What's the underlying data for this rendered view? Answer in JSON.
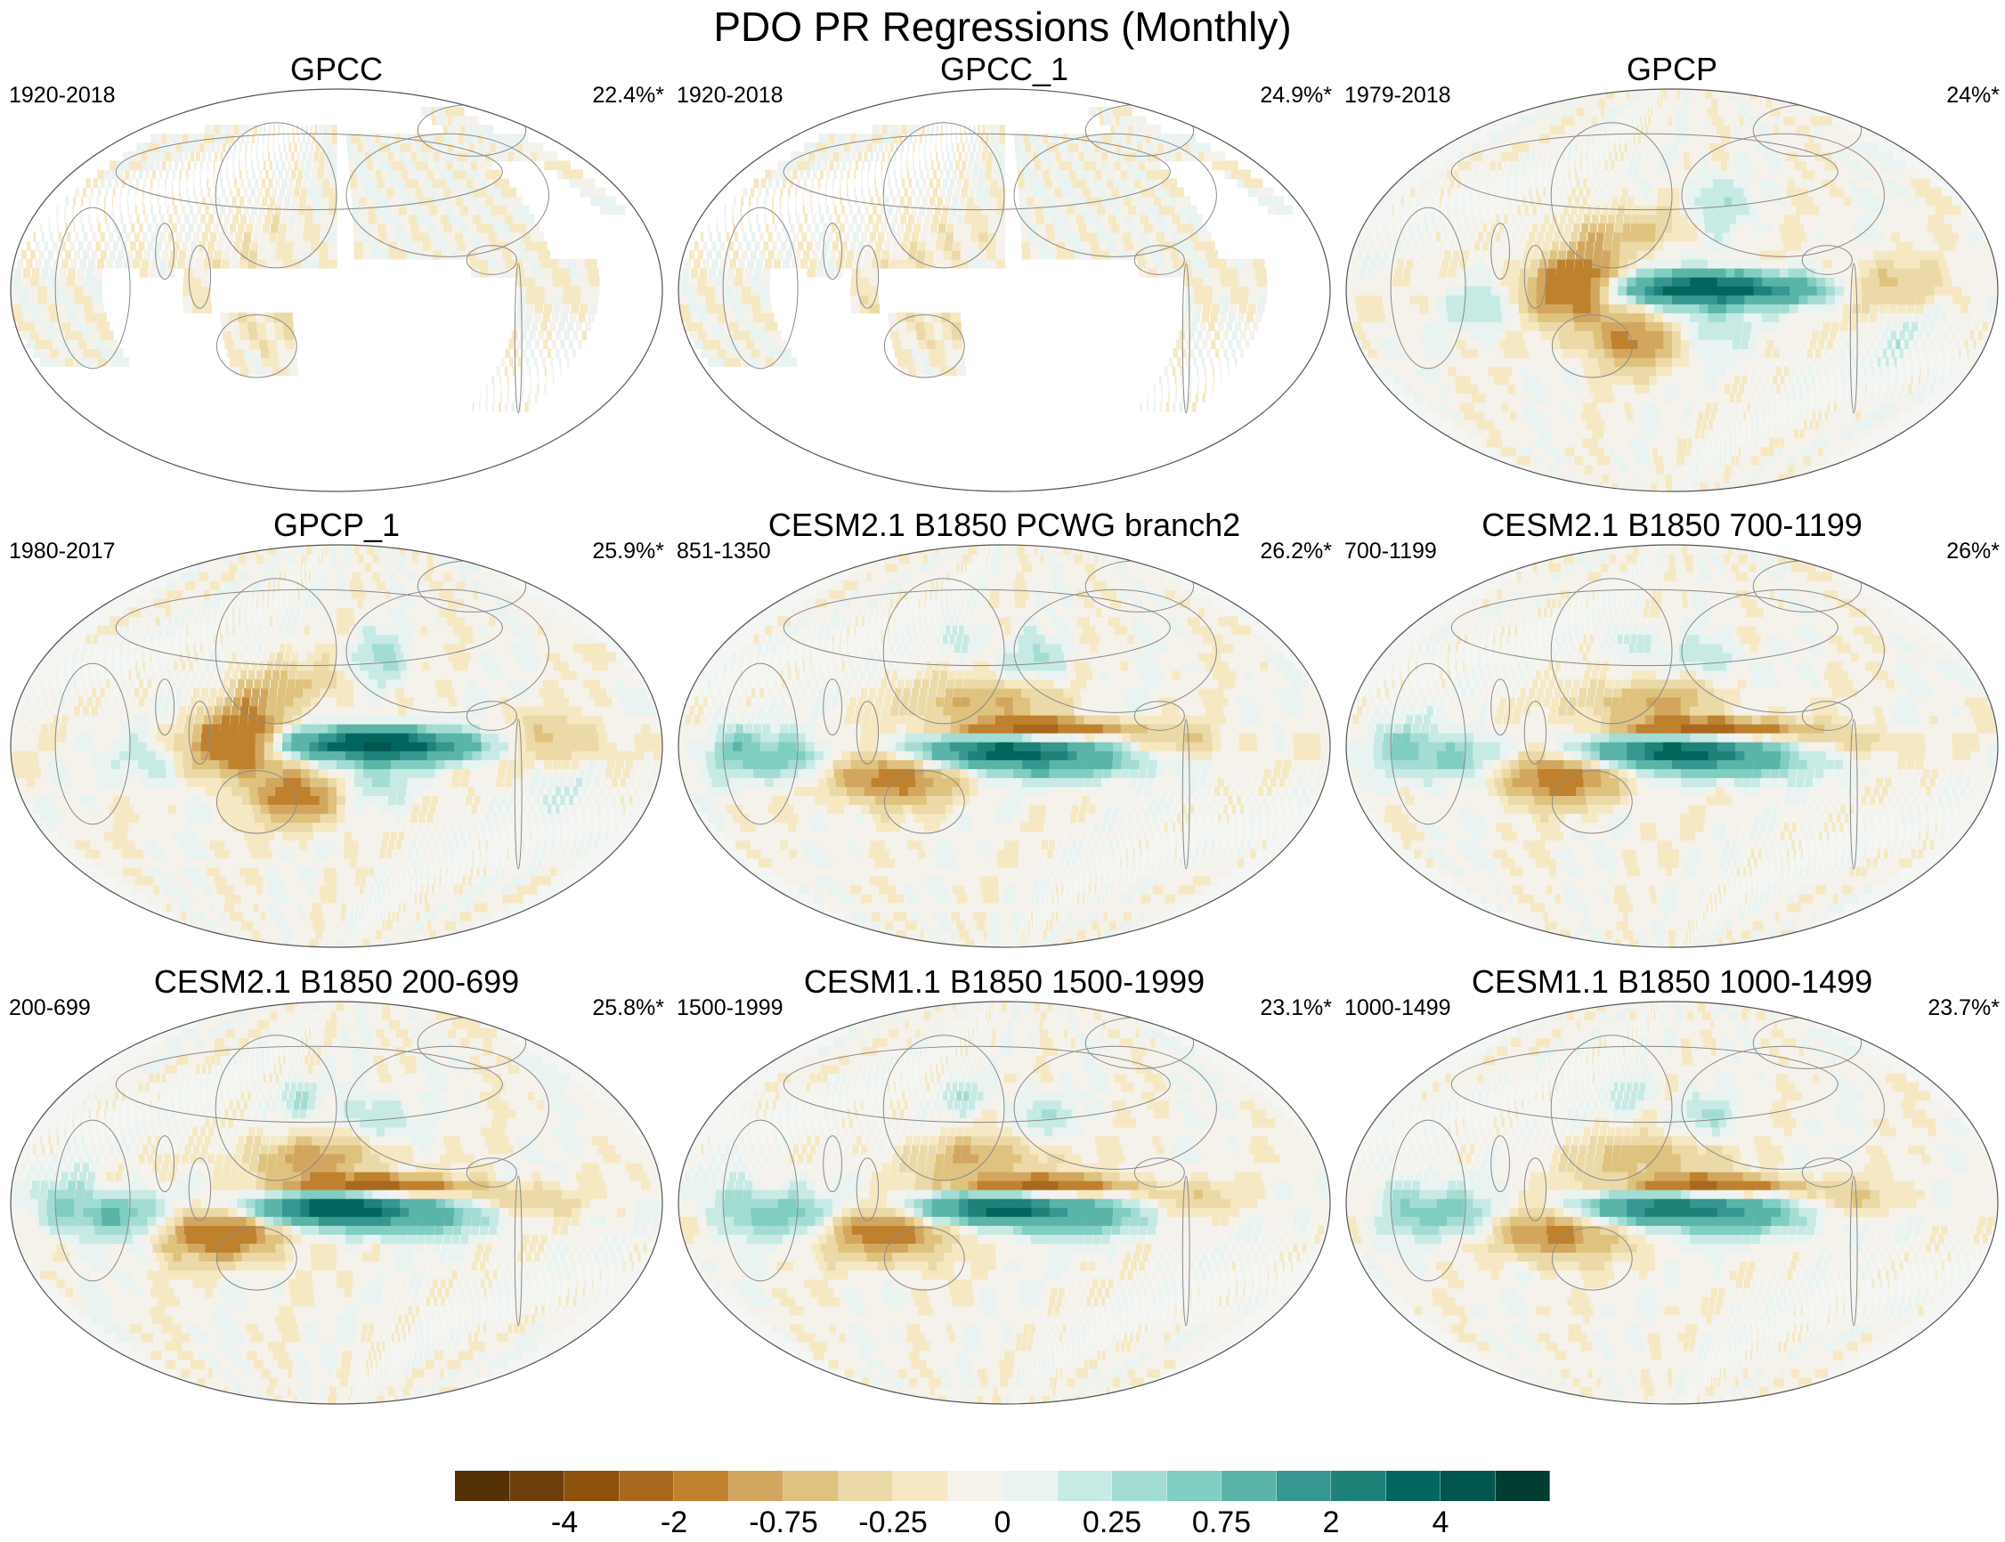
{
  "figure": {
    "title": "PDO PR Regressions (Monthly)"
  },
  "panels": [
    {
      "title": "GPCC",
      "period": "1920-2018",
      "percent": "22.4%*",
      "pattern": "land",
      "amp": 0.35
    },
    {
      "title": "GPCC_1",
      "period": "1920-2018",
      "percent": "24.9%*",
      "pattern": "land",
      "amp": 0.35
    },
    {
      "title": "GPCP",
      "period": "1979-2018",
      "percent": "24%*",
      "pattern": "obs",
      "amp": 1.0
    },
    {
      "title": "GPCP_1",
      "period": "1980-2017",
      "percent": "25.9%*",
      "pattern": "obs",
      "amp": 1.05
    },
    {
      "title": "CESM2.1 B1850 PCWG branch2",
      "period": "851-1350",
      "percent": "26.2%*",
      "pattern": "model",
      "amp": 1.0
    },
    {
      "title": "CESM2.1 B1850 700-1199",
      "period": "700-1199",
      "percent": "26%*",
      "pattern": "model",
      "amp": 1.0
    },
    {
      "title": "CESM2.1 B1850 200-699",
      "period": "200-699",
      "percent": "25.8%*",
      "pattern": "model",
      "amp": 1.1
    },
    {
      "title": "CESM1.1 B1850 1500-1999",
      "period": "1500-1999",
      "percent": "23.1%*",
      "pattern": "model",
      "amp": 0.95
    },
    {
      "title": "CESM1.1 B1850 1000-1499",
      "period": "1000-1499",
      "percent": "23.7%*",
      "pattern": "model",
      "amp": 0.9
    }
  ],
  "colorbar": {
    "levels": [
      -5,
      -4,
      -3,
      -2,
      -1,
      -0.75,
      -0.5,
      -0.25,
      0,
      0.25,
      0.5,
      0.75,
      1,
      2,
      3,
      4,
      5
    ],
    "colors": [
      "#543005",
      "#6e3f0b",
      "#8c510a",
      "#a9681e",
      "#bf812d",
      "#d3a660",
      "#dfc27d",
      "#ecd9a8",
      "#f6e8c3",
      "#f5f2ec",
      "#e9f3f1",
      "#c7eae5",
      "#a3dcd3",
      "#80cdc1",
      "#5ab4a8",
      "#35978f",
      "#1f8279",
      "#01665e",
      "#01574f",
      "#003c30"
    ],
    "tick_labels": [
      "-4",
      "-2",
      "-0.75",
      "-0.25",
      "0",
      "0.25",
      "0.75",
      "2",
      "4"
    ]
  },
  "chart_data": {
    "type": "heatmap",
    "title": "PDO PR Regressions (Monthly)",
    "projection": "Robinson (Pacific-centered, 180°)",
    "variable": "Precipitation regression on PDO index",
    "panels": [
      "GPCC",
      "GPCC_1",
      "GPCP",
      "GPCP_1",
      "CESM2.1 B1850 PCWG branch2",
      "CESM2.1 B1850 700-1199",
      "CESM2.1 B1850 200-699",
      "CESM1.1 B1850 1500-1999",
      "CESM1.1 B1850 1000-1499"
    ],
    "colorbar_levels": [
      -5,
      -4,
      -3,
      -2,
      -1,
      -0.75,
      -0.5,
      -0.25,
      0,
      0.25,
      0.5,
      0.75,
      1,
      2,
      3,
      4,
      5
    ],
    "colorbar_tick_labels": [
      "-4",
      "-2",
      "-0.75",
      "-0.25",
      "0",
      "0.25",
      "0.75",
      "2",
      "4"
    ],
    "features": [
      {
        "name": "equatorial central Pacific wet anomaly",
        "lon": 190,
        "lat": 0,
        "value": 3
      },
      {
        "name": "Maritime Continent dry anomaly",
        "lon": 125,
        "lat": -5,
        "value": -1.5
      },
      {
        "name": "ITCZ dry band (models)",
        "lon": 200,
        "lat": 8,
        "value": -2
      },
      {
        "name": "SPCZ / Australia dry band",
        "lon": 160,
        "lat": -22,
        "value": -1
      },
      {
        "name": "North Pacific wet anomaly",
        "lon": 205,
        "lat": 38,
        "value": 0.5
      }
    ]
  }
}
